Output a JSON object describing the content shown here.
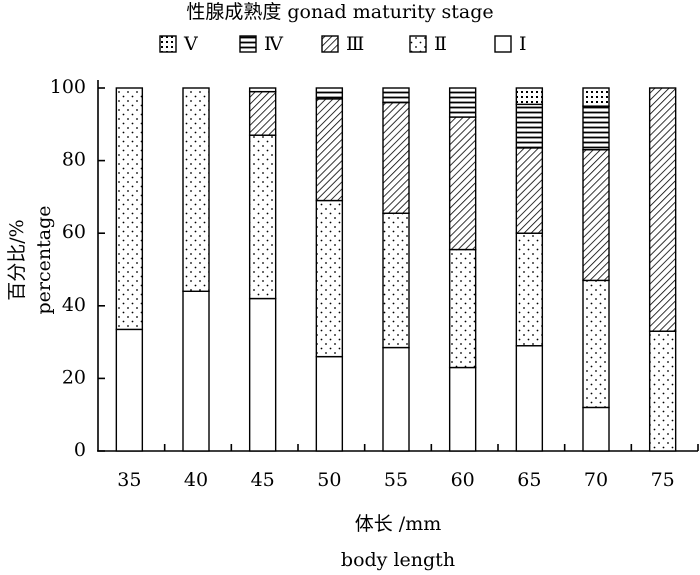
{
  "chart_data": {
    "type": "stacked-bar",
    "title": "性腺成熟度 gonad maturity stage",
    "y_label": [
      "百分比/%",
      "percentage"
    ],
    "x_label": [
      "体长 /mm",
      "body length"
    ],
    "categories": [
      "35",
      "40",
      "45",
      "50",
      "55",
      "60",
      "65",
      "70",
      "75"
    ],
    "series": [
      {
        "name": "Ⅰ",
        "color": "#000000",
        "pattern": "none",
        "values": [
          33.5,
          44,
          42,
          26,
          28.5,
          23,
          29,
          12,
          0
        ]
      },
      {
        "name": "Ⅱ",
        "color": "#000000",
        "pattern": "dots",
        "values": [
          66.5,
          56,
          45,
          43,
          37,
          32.5,
          31,
          35,
          33
        ]
      },
      {
        "name": "Ⅲ",
        "color": "#000000",
        "pattern": "diagonal",
        "values": [
          0,
          0,
          12,
          28,
          30.5,
          36.5,
          23.5,
          36,
          67
        ]
      },
      {
        "name": "Ⅳ",
        "color": "#000000",
        "pattern": "horizontal",
        "values": [
          0,
          0,
          1,
          3,
          4,
          8,
          12,
          12,
          0
        ]
      },
      {
        "name": "Ⅴ",
        "color": "#000000",
        "pattern": "dense-dots",
        "values": [
          0,
          0,
          0,
          0,
          0,
          0,
          4.5,
          5,
          0
        ]
      }
    ],
    "ylim": [
      0,
      100
    ],
    "yticks": [
      0,
      20,
      40,
      60,
      80,
      100
    ],
    "grid": false
  }
}
